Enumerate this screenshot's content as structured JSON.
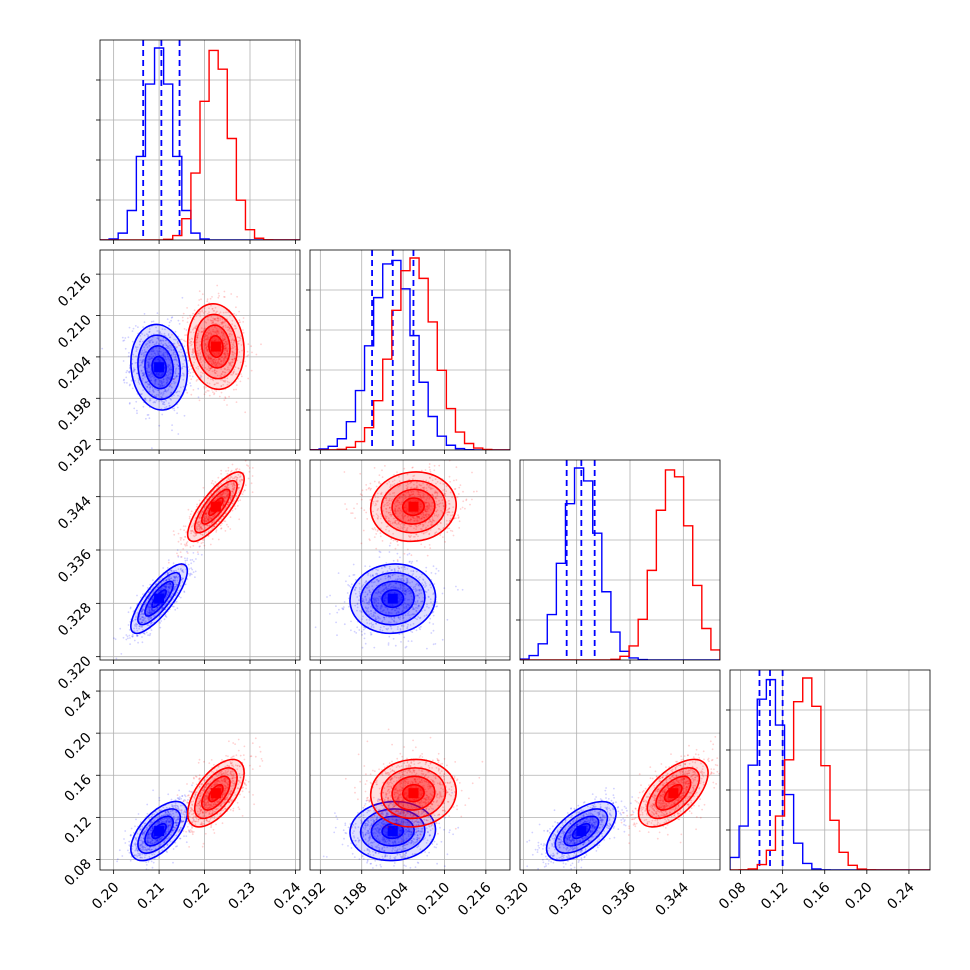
{
  "chart_data": {
    "type": "corner",
    "colors": {
      "series_a": "#0000ff",
      "series_b": "#ff0000",
      "grid": "#b0b0b0",
      "axes": "#000000"
    },
    "grid": true,
    "series": [
      {
        "color": "#0000ff",
        "means": [
          0.21,
          0.2025,
          0.3287,
          0.107
        ],
        "stds": [
          0.0031,
          0.0031,
          0.0026,
          0.014
        ],
        "quantiles": [
          [
            0.2065,
            0.2105,
            0.2145
          ],
          [
            0.1995,
            0.2025,
            0.2055
          ],
          [
            0.3265,
            0.3287,
            0.3307
          ],
          [
            0.098,
            0.108,
            0.12
          ]
        ],
        "correlations": {
          "1-0": -0.1,
          "2-0": 0.8,
          "2-1": 0.05,
          "3-0": 0.6,
          "3-1": 0.05,
          "3-2": 0.6
        }
      },
      {
        "color": "#ff0000",
        "means": [
          0.2225,
          0.2055,
          0.3425,
          0.143
        ],
        "stds": [
          0.0031,
          0.0031,
          0.0026,
          0.016
        ],
        "quantiles": [],
        "correlations": {
          "1-0": -0.1,
          "2-0": 0.8,
          "2-1": 0.05,
          "3-0": 0.6,
          "3-1": 0.05,
          "3-2": 0.6
        }
      }
    ],
    "parameters": [
      {
        "range": [
          0.197,
          0.241
        ],
        "ticks": [
          0.2,
          0.21,
          0.22,
          0.23,
          0.24
        ],
        "tick_labels": [
          "0.20",
          "0.21",
          "0.22",
          "0.23",
          "0.24"
        ],
        "hist_bins": 20
      },
      {
        "range": [
          0.1905,
          0.2195
        ],
        "ticks": [
          0.192,
          0.198,
          0.204,
          0.21,
          0.216
        ],
        "tick_labels": [
          "0.192",
          "0.198",
          "0.204",
          "0.210",
          "0.216"
        ],
        "hist_bins": 20
      },
      {
        "range": [
          0.3195,
          0.3495
        ],
        "ticks": [
          0.32,
          0.328,
          0.336,
          0.344
        ],
        "tick_labels": [
          "0.320",
          "0.328",
          "0.336",
          "0.344"
        ],
        "hist_bins": 20
      },
      {
        "range": [
          0.07,
          0.26
        ],
        "ticks": [
          0.08,
          0.12,
          0.16,
          0.2,
          0.24
        ],
        "tick_labels": [
          "0.08",
          "0.12",
          "0.16",
          "0.20",
          "0.24"
        ],
        "hist_bins": 20
      }
    ],
    "contour_levels_sigma": [
      0.5,
      1.0,
      1.5,
      2.0
    ]
  }
}
